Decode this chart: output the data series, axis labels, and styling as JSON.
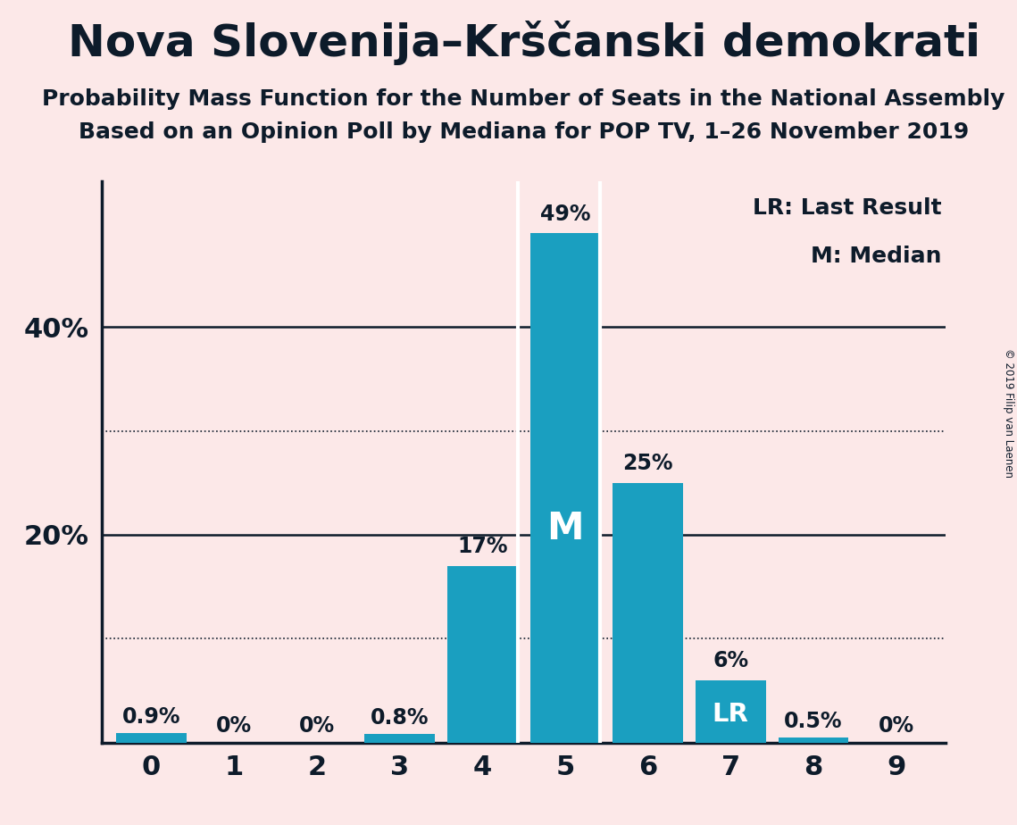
{
  "title": "Nova Slovenija–Krščanski demokrati",
  "subtitle1": "Probability Mass Function for the Number of Seats in the National Assembly",
  "subtitle2": "Based on an Opinion Poll by Mediana for POP TV, 1–26 November 2019",
  "copyright": "© 2019 Filip van Laenen",
  "categories": [
    0,
    1,
    2,
    3,
    4,
    5,
    6,
    7,
    8,
    9
  ],
  "values": [
    0.9,
    0.0,
    0.0,
    0.8,
    17.0,
    49.0,
    25.0,
    6.0,
    0.5,
    0.0
  ],
  "bar_color": "#1a9fc0",
  "background_color": "#fce8e8",
  "text_color": "#0d1b2a",
  "dotted_lines": [
    10,
    30
  ],
  "ylim": [
    0,
    54
  ],
  "median_bar": 5,
  "lr_bar": 7,
  "title_fontsize": 36,
  "subtitle_fontsize": 18,
  "label_fontsize": 17,
  "axis_label_fontsize": 22,
  "legend_fontsize": 18,
  "bar_width": 0.85
}
